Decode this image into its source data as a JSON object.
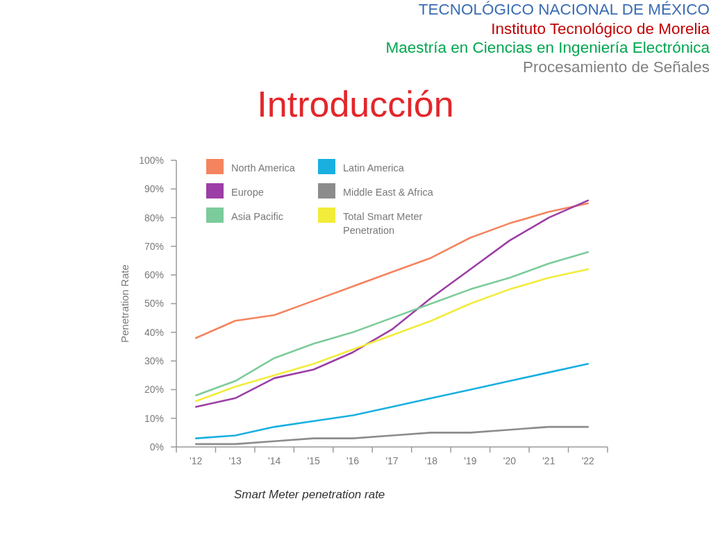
{
  "chart_data": {
    "type": "line",
    "title": "Introducción",
    "ylabel": "Penetration Rate",
    "annotations": [
      "TECNOLÓGICO NACIONAL DE MÉXICO",
      "Instituto Tecnológico de Morelia",
      "Maestría en Ciencias en Ingeniería Electrónica",
      "Procesamiento de Señales",
      "Smart Meter penetration rate"
    ],
    "categories": [
      "'12",
      "'13",
      "'14",
      "'15",
      "'16",
      "'17",
      "'18",
      "'19",
      "'20",
      "'21",
      "'22"
    ],
    "series": [
      {
        "name": "North America",
        "color": "#f4845f",
        "values": [
          38,
          44,
          46,
          51,
          56,
          61,
          66,
          73,
          78,
          82,
          85
        ]
      },
      {
        "name": "Europe",
        "color": "#9c3ea6",
        "values": [
          14,
          17,
          24,
          27,
          33,
          41,
          52,
          62,
          72,
          80,
          86
        ]
      },
      {
        "name": "Asia Pacific",
        "color": "#7ccb9a",
        "values": [
          18,
          23,
          31,
          36,
          40,
          45,
          50,
          55,
          59,
          64,
          68
        ]
      },
      {
        "name": "Latin America",
        "color": "#19b0e0",
        "values": [
          3,
          4,
          7,
          9,
          11,
          14,
          17,
          20,
          23,
          26,
          29
        ]
      },
      {
        "name": "Middle East & Africa",
        "color": "#8c8c8c",
        "values": [
          1,
          1,
          2,
          3,
          3,
          4,
          5,
          5,
          6,
          7,
          7
        ]
      },
      {
        "name": "Total Smart Meter Penetration",
        "color": "#f2ec3a",
        "values": [
          16,
          21,
          25,
          29,
          34,
          39,
          44,
          50,
          55,
          59,
          62
        ]
      }
    ],
    "ylim": [
      0,
      100
    ],
    "yticks": [
      {
        "value": 0,
        "label": "0%"
      },
      {
        "value": 10,
        "label": "10%"
      },
      {
        "value": 20,
        "label": "20%"
      },
      {
        "value": 30,
        "label": "30%"
      },
      {
        "value": 40,
        "label": "40%"
      },
      {
        "value": 50,
        "label": "50%"
      },
      {
        "value": 60,
        "label": "60%"
      },
      {
        "value": 70,
        "label": "70%"
      },
      {
        "value": 80,
        "label": "80%"
      },
      {
        "value": 90,
        "label": "90%"
      },
      {
        "value": 100,
        "label": "100%"
      }
    ],
    "legend": "top left",
    "marker": "none"
  }
}
